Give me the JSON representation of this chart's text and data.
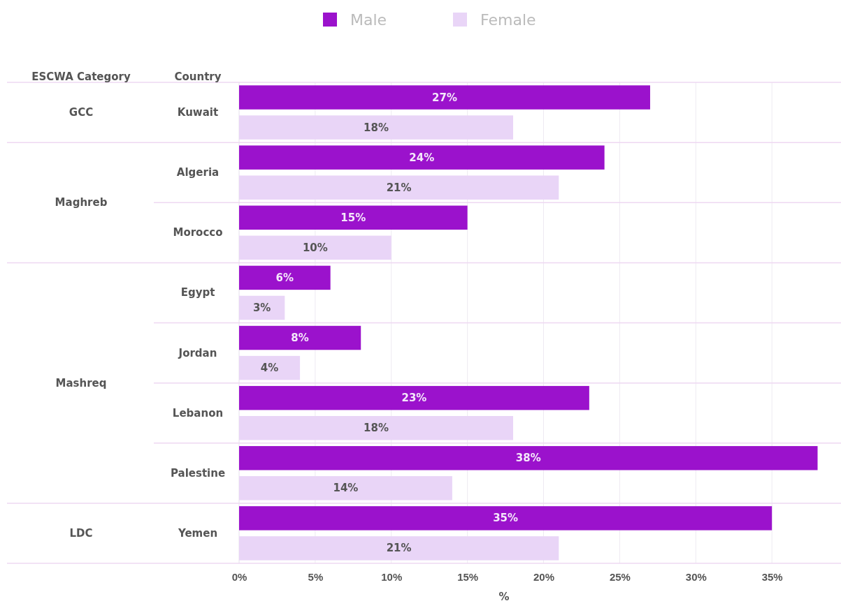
{
  "chart_data": {
    "type": "bar",
    "orientation": "horizontal",
    "legend": "top",
    "grid": "x",
    "categories": [
      "Kuwait",
      "Algeria",
      "Morocco",
      "Egypt",
      "Jordan",
      "Lebanon",
      "Palestine",
      "Yemen"
    ],
    "series": [
      {
        "name": "Male",
        "color": "#9b12cc",
        "values": [
          27,
          24,
          15,
          6,
          8,
          23,
          38,
          35
        ],
        "value_labels": [
          "27%",
          "24%",
          "15%",
          "6%",
          "8%",
          "23%",
          "38%",
          "35%"
        ]
      },
      {
        "name": "Female",
        "color": "#e9d5f7",
        "values": [
          18,
          21,
          10,
          3,
          4,
          18,
          14,
          21
        ],
        "value_labels": [
          "18%",
          "21%",
          "10%",
          "3%",
          "4%",
          "18%",
          "14%",
          "21%"
        ]
      }
    ],
    "xlim": [
      0,
      39.4
    ],
    "xticks": [
      {
        "value": 0,
        "label": "0%"
      },
      {
        "value": 5,
        "label": "5%"
      },
      {
        "value": 10,
        "label": "10%"
      },
      {
        "value": 15,
        "label": "15%"
      },
      {
        "value": 20,
        "label": "20%"
      },
      {
        "value": 25,
        "label": "25%"
      },
      {
        "value": 30,
        "label": "30%"
      },
      {
        "value": 35,
        "label": "35%"
      }
    ],
    "xlabel": "%",
    "ylabel": "Country",
    "annotations": [
      "ESCWA Category",
      "GCC",
      "Maghreb",
      "Mashreq",
      "LDC"
    ]
  }
}
